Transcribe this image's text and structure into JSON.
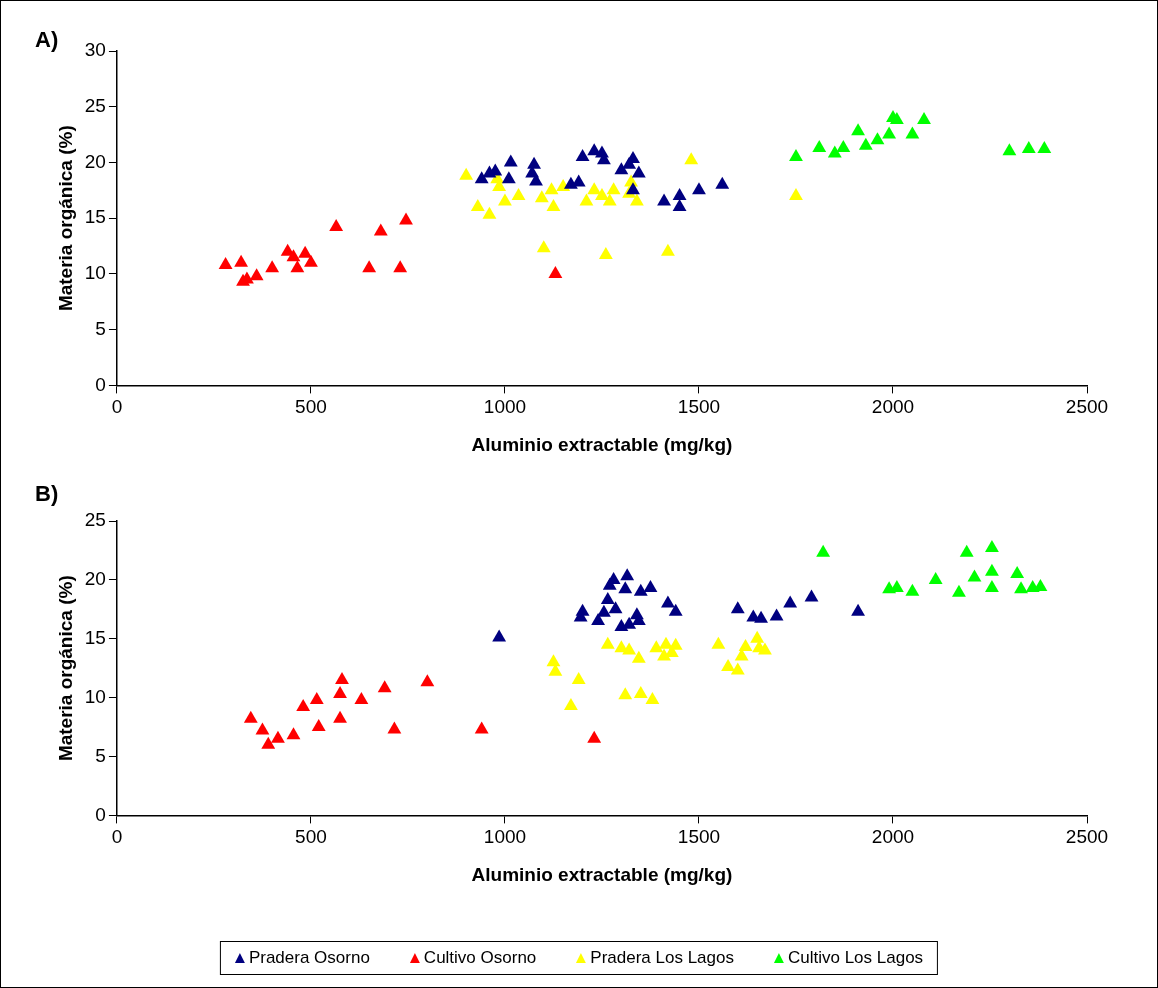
{
  "chart_data": [
    {
      "type": "scatter",
      "title": "A)",
      "xlabel": "Aluminio extractable (mg/kg)",
      "ylabel": "Materia orgánica (%)",
      "xlim": [
        0,
        2500
      ],
      "xticks": [
        0,
        500,
        1000,
        1500,
        2000,
        2500
      ],
      "ylim": [
        0,
        30
      ],
      "yticks": [
        0,
        5,
        10,
        15,
        20,
        25,
        30
      ],
      "grid": false,
      "legend": false,
      "marker": "triangle",
      "series": [
        {
          "color": "#000080",
          "x": [
            940,
            960,
            975,
            1010,
            1015,
            1070,
            1075,
            1080,
            1170,
            1190,
            1200,
            1230,
            1250,
            1255,
            1300,
            1320,
            1330,
            1345,
            1330,
            1410,
            1450,
            1450,
            1500,
            1560
          ],
          "values": [
            18.5,
            19,
            19.2,
            18.5,
            20,
            19,
            19.8,
            18.3,
            18,
            18.2,
            20.5,
            21,
            20.8,
            20.2,
            19.3,
            19.8,
            20.3,
            19,
            17.5,
            16.5,
            17,
            16,
            17.5,
            18
          ]
        },
        {
          "color": "#ff0000",
          "x": [
            280,
            320,
            325,
            335,
            360,
            400,
            440,
            455,
            465,
            485,
            500,
            565,
            650,
            680,
            730,
            745,
            1130
          ],
          "values": [
            10.8,
            11,
            9.3,
            9.5,
            9.8,
            10.5,
            12,
            11.5,
            10.5,
            11.8,
            11,
            14.2,
            10.5,
            13.8,
            10.5,
            14.8,
            10
          ]
        },
        {
          "color": "#ffff00",
          "x": [
            900,
            930,
            960,
            980,
            985,
            1000,
            1035,
            1095,
            1100,
            1120,
            1125,
            1150,
            1210,
            1230,
            1250,
            1260,
            1270,
            1280,
            1320,
            1325,
            1340,
            1420,
            1480,
            1750
          ],
          "values": [
            18.8,
            16,
            15.3,
            18.5,
            17.8,
            16.5,
            17,
            16.8,
            12.3,
            17.5,
            16,
            17.8,
            16.5,
            17.5,
            17,
            11.7,
            16.5,
            17.5,
            17.2,
            18.2,
            16.5,
            12,
            20.2,
            17
          ]
        },
        {
          "color": "#00ff00",
          "x": [
            1750,
            1810,
            1850,
            1872,
            1910,
            1930,
            1960,
            1990,
            2000,
            2010,
            2050,
            2080,
            2300,
            2350,
            2390
          ],
          "values": [
            20.5,
            21.3,
            20.8,
            21.3,
            22.8,
            21.5,
            22,
            22.5,
            24,
            23.8,
            22.5,
            23.8,
            21,
            21.2,
            21.2
          ]
        }
      ]
    },
    {
      "type": "scatter",
      "title": "B)",
      "xlabel": "Aluminio extractable (mg/kg)",
      "ylabel": "Materia orgánica (%)",
      "xlim": [
        0,
        2500
      ],
      "xticks": [
        0,
        500,
        1000,
        1500,
        2000,
        2500
      ],
      "ylim": [
        0,
        25
      ],
      "yticks": [
        0,
        5,
        10,
        15,
        20,
        25
      ],
      "grid": false,
      "legend": "bottom",
      "marker": "triangle",
      "series": [
        {
          "name": "Pradera Osorno",
          "color": "#000080",
          "x": [
            985,
            1195,
            1200,
            1240,
            1255,
            1265,
            1270,
            1280,
            1285,
            1300,
            1310,
            1315,
            1320,
            1340,
            1345,
            1350,
            1375,
            1420,
            1440,
            1600,
            1640,
            1660,
            1700,
            1735,
            1790,
            1910
          ],
          "values": [
            15.1,
            16.8,
            17.3,
            16.5,
            17.2,
            18.3,
            19.5,
            20,
            17.5,
            16,
            19.2,
            20.3,
            16.2,
            17,
            16.5,
            19,
            19.3,
            18,
            17.3,
            17.5,
            16.8,
            16.7,
            16.9,
            18,
            18.5,
            17.3
          ]
        },
        {
          "name": "Cultivo Osorno",
          "color": "#ff0000",
          "x": [
            345,
            375,
            390,
            415,
            455,
            480,
            515,
            520,
            575,
            575,
            580,
            630,
            690,
            715,
            800,
            940,
            1230
          ],
          "values": [
            8.2,
            7.2,
            6,
            6.5,
            6.8,
            9.2,
            9.8,
            7.5,
            8.2,
            10.3,
            11.5,
            9.8,
            10.8,
            7.3,
            11.3,
            7.3,
            6.5
          ]
        },
        {
          "name": "Pradera Los Lagos",
          "color": "#ffff00",
          "x": [
            1125,
            1130,
            1170,
            1190,
            1265,
            1300,
            1310,
            1320,
            1345,
            1350,
            1380,
            1390,
            1410,
            1415,
            1430,
            1440,
            1550,
            1575,
            1600,
            1610,
            1620,
            1650,
            1655,
            1670
          ],
          "values": [
            13,
            12.2,
            9.3,
            11.5,
            14.5,
            14.2,
            10.2,
            14,
            13.3,
            10.3,
            9.8,
            14.2,
            13.5,
            14.5,
            13.8,
            14.4,
            14.5,
            12.6,
            12.3,
            13.5,
            14.3,
            15,
            14.2,
            14
          ]
        },
        {
          "name": "Cultivo Los Lagos",
          "color": "#00ff00",
          "x": [
            1820,
            1990,
            2010,
            2050,
            2110,
            2170,
            2190,
            2210,
            2255,
            2255,
            2255,
            2320,
            2330,
            2360,
            2380
          ],
          "values": [
            22.3,
            19.2,
            19.3,
            19,
            20,
            18.9,
            22.3,
            20.2,
            22.7,
            20.7,
            19.3,
            20.5,
            19.2,
            19.3,
            19.4
          ]
        }
      ]
    }
  ]
}
